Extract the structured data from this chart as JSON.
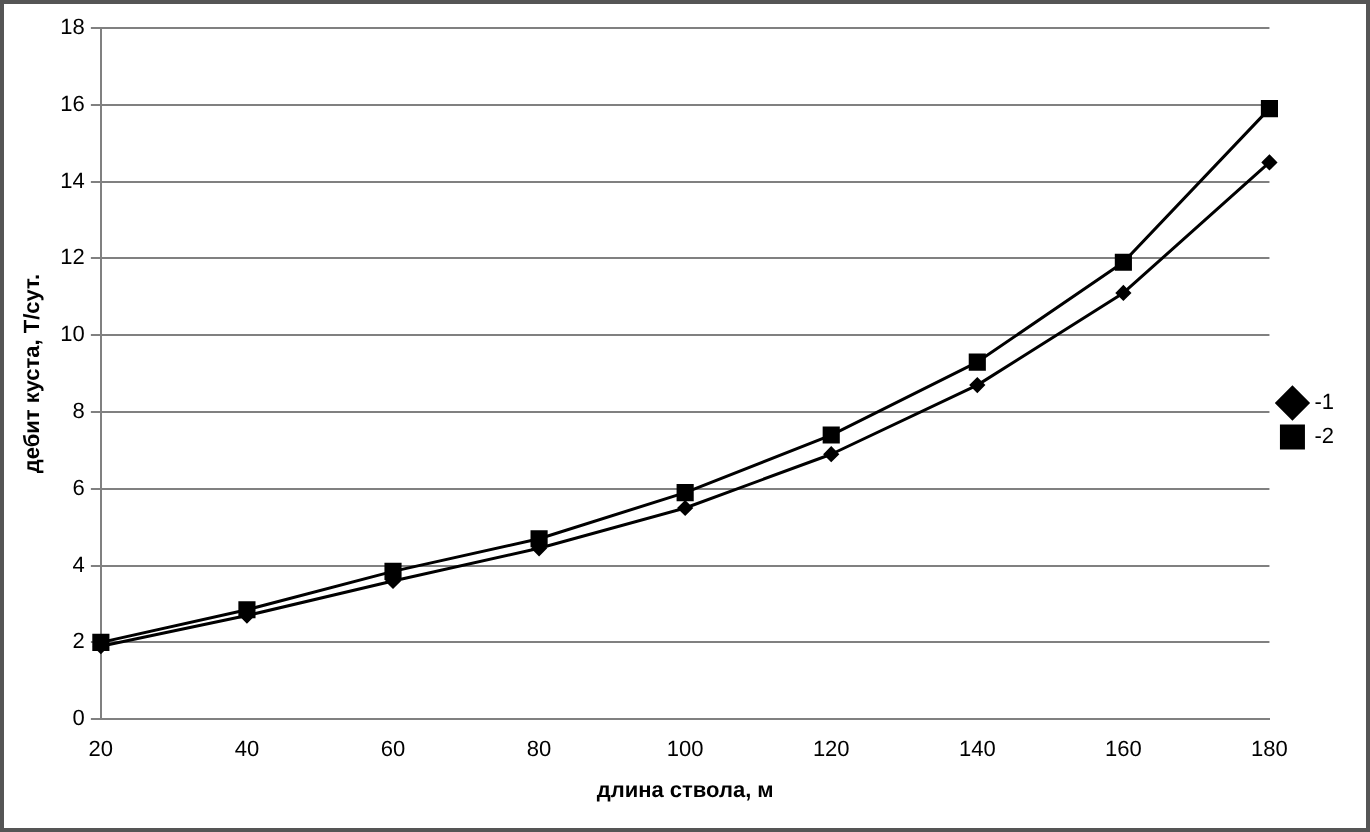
{
  "chart_data": {
    "type": "line",
    "xlabel": "длина ствола, м",
    "ylabel": "дебит куста, Т/сут.",
    "categories": [
      "20",
      "40",
      "60",
      "80",
      "100",
      "120",
      "140",
      "160",
      "180"
    ],
    "series": [
      {
        "name": "-1",
        "color": "#000000",
        "marker": "diamond",
        "values": [
          1.9,
          2.7,
          3.6,
          4.45,
          5.5,
          6.9,
          8.7,
          11.1,
          14.5
        ]
      },
      {
        "name": "-2",
        "color": "#000000",
        "marker": "square",
        "values": [
          2.0,
          2.85,
          3.85,
          4.7,
          5.9,
          7.4,
          9.3,
          11.9,
          15.9
        ]
      }
    ],
    "ylim": [
      0,
      18
    ],
    "yticks": [
      0,
      2,
      4,
      6,
      8,
      10,
      12,
      14,
      16,
      18
    ],
    "grid": "y",
    "legend": "right",
    "line_style": "solid"
  }
}
